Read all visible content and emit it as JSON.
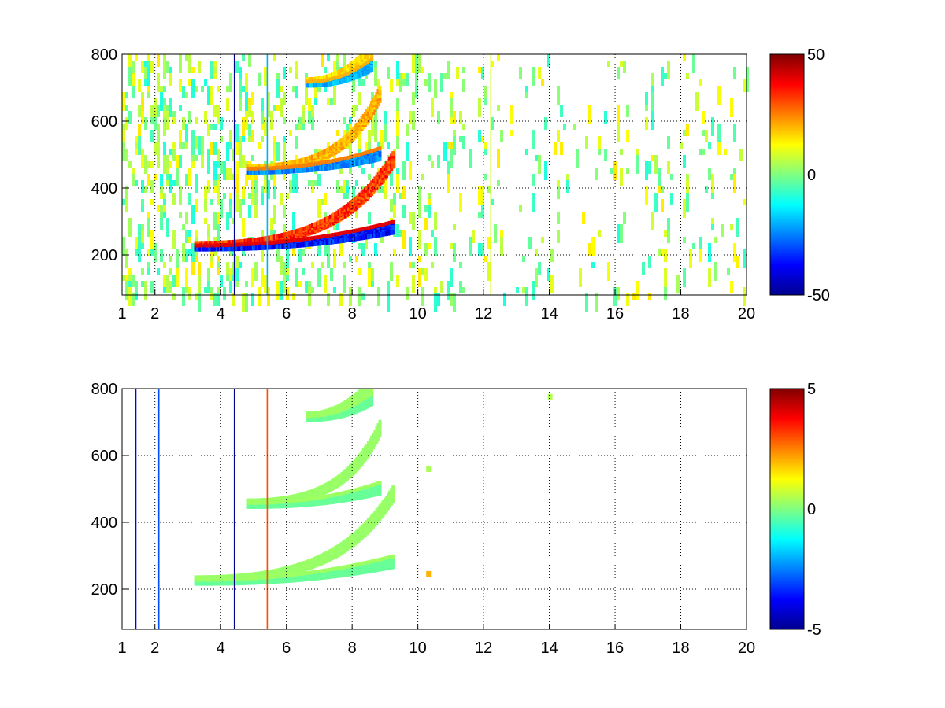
{
  "figure": {
    "background": "#ffffff",
    "colormap": "jet",
    "colormap_stops": [
      "#00008f",
      "#0000ff",
      "#0080ff",
      "#00ffff",
      "#80ff80",
      "#ffff00",
      "#ff8000",
      "#ff0000",
      "#800000"
    ]
  },
  "chart_data": [
    {
      "type": "heatmap",
      "title": "",
      "xlabel": "",
      "ylabel": "",
      "xlim": [
        1,
        20
      ],
      "ylim": [
        80,
        800
      ],
      "x_ticks": [
        1,
        2,
        4,
        6,
        8,
        10,
        12,
        14,
        16,
        18,
        20
      ],
      "y_ticks": [
        200,
        400,
        600,
        800
      ],
      "x_tick_labels": [
        "1",
        "2",
        "4",
        "6",
        "8",
        "10",
        "12",
        "14",
        "16",
        "18",
        "20"
      ],
      "y_tick_labels": [
        "200",
        "400",
        "600",
        "800"
      ],
      "grid": true,
      "colorbar": {
        "range": [
          -50,
          50
        ],
        "ticks": [
          -50,
          0,
          50
        ],
        "tick_labels": [
          "-50",
          "0",
          "50"
        ]
      },
      "features": [
        {
          "kind": "arc",
          "x_start": 3.2,
          "x_end": 9.2,
          "y_start": 230,
          "y_end": 300,
          "y_end_high": 500,
          "value_top": 40,
          "value_bottom": -45
        },
        {
          "kind": "arc",
          "x_start": 4.8,
          "x_end": 8.8,
          "y_start": 460,
          "y_end": 520,
          "y_end_high": 690,
          "value_top": 25,
          "value_bottom": -30
        },
        {
          "kind": "arc",
          "x_start": 6.6,
          "x_end": 8.6,
          "y_start": 720,
          "y_end": 790,
          "y_end_high": 790,
          "value_top": 20,
          "value_bottom": -25
        }
      ],
      "noise": {
        "x_range": [
          1,
          20
        ],
        "density_low_x": 0.55,
        "density_high_x": 0.12,
        "values": [
          -10,
          15
        ]
      },
      "vertical_lines": [
        {
          "x": 4.4,
          "value": -50
        },
        {
          "x": 5.4,
          "value": -20
        },
        {
          "x": 12.2,
          "value": 8
        }
      ]
    },
    {
      "type": "heatmap",
      "title": "",
      "xlabel": "",
      "ylabel": "",
      "xlim": [
        1,
        20
      ],
      "ylim": [
        80,
        800
      ],
      "x_ticks": [
        1,
        2,
        4,
        6,
        8,
        10,
        12,
        14,
        16,
        18,
        20
      ],
      "y_ticks": [
        200,
        400,
        600,
        800
      ],
      "x_tick_labels": [
        "1",
        "2",
        "4",
        "6",
        "8",
        "10",
        "12",
        "14",
        "16",
        "18",
        "20"
      ],
      "y_tick_labels": [
        "200",
        "400",
        "600",
        "800"
      ],
      "grid": true,
      "colorbar": {
        "range": [
          -5,
          5
        ],
        "ticks": [
          -5,
          0,
          5
        ],
        "tick_labels": [
          "-5",
          "0",
          "5"
        ]
      },
      "features": [
        {
          "kind": "arc",
          "x_start": 3.2,
          "x_end": 9.2,
          "y_start": 230,
          "y_end": 300,
          "y_end_high": 500,
          "value_top": 0.3,
          "value_bottom": -0.3
        },
        {
          "kind": "arc",
          "x_start": 4.8,
          "x_end": 8.8,
          "y_start": 460,
          "y_end": 520,
          "y_end_high": 690,
          "value_top": 0.3,
          "value_bottom": -0.3
        },
        {
          "kind": "arc",
          "x_start": 6.6,
          "x_end": 8.6,
          "y_start": 720,
          "y_end": 790,
          "y_end_high": 790,
          "value_top": 0.3,
          "value_bottom": -0.3
        }
      ],
      "noise": {
        "x_range": [
          1,
          1.2
        ],
        "density_low_x": 0.02,
        "density_high_x": 0.0,
        "values": [
          -4,
          4
        ]
      },
      "vertical_lines": [
        {
          "x": 1.4,
          "value": -4
        },
        {
          "x": 2.1,
          "value": -3
        },
        {
          "x": 4.4,
          "value": -5
        },
        {
          "x": 5.4,
          "value": 3
        }
      ],
      "spots": [
        {
          "x": 10.3,
          "y": 245,
          "value": 2
        },
        {
          "x": 14.0,
          "y": 775,
          "value": 0.5
        },
        {
          "x": 10.3,
          "y": 560,
          "value": 0.4
        }
      ]
    }
  ]
}
